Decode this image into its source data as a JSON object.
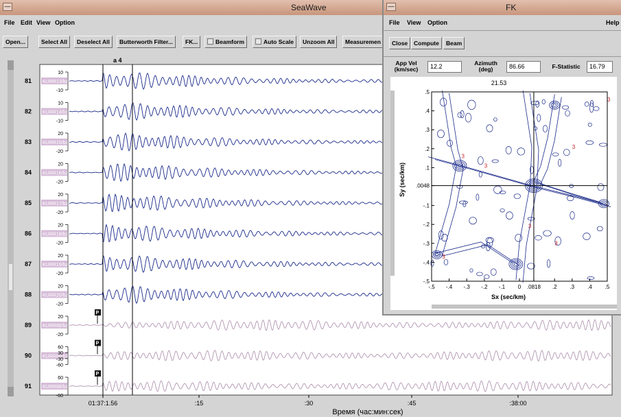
{
  "seawave": {
    "title": "SeaWave",
    "menu": [
      "File",
      "Edit",
      "View",
      "Option"
    ],
    "toolbar": [
      "Open...",
      "Select All",
      "Deselect All",
      "Butterworth Filter...",
      "FK...",
      "Beamform",
      "Auto Scale",
      "Unzoom All",
      "Measuremen"
    ],
    "pick_label": "a 4",
    "xaxis": {
      "ticks": [
        "01:37:1.56",
        ":15",
        ":30",
        ":45",
        ":38:00"
      ],
      "label": "Время (час:мин:сек)"
    },
    "traces": [
      {
        "num": "81",
        "name": "KURR13/bz",
        "scale": [
          "10",
          "-10"
        ],
        "active": true
      },
      {
        "num": "82",
        "name": "KURR14/bz",
        "scale": [
          "10",
          "-10"
        ],
        "active": true
      },
      {
        "num": "83",
        "name": "KURR15/bz",
        "scale": [
          "20",
          "-20"
        ],
        "active": true
      },
      {
        "num": "84",
        "name": "KURR16/bz",
        "scale": [
          "20",
          "-20"
        ],
        "active": true
      },
      {
        "num": "85",
        "name": "KURR17/bz",
        "scale": [
          "20",
          "-20"
        ],
        "active": true
      },
      {
        "num": "86",
        "name": "KURR18/bz",
        "scale": [
          "20",
          "-20"
        ],
        "active": true
      },
      {
        "num": "87",
        "name": "KURR19/bz",
        "scale": [
          "20",
          "-20"
        ],
        "active": true
      },
      {
        "num": "88",
        "name": "KURR20/bz",
        "scale": [
          "20",
          "-20"
        ],
        "active": true
      },
      {
        "num": "89",
        "name": "KURR88/bz",
        "scale": [
          "20",
          "-20"
        ],
        "active": false,
        "pick": "P"
      },
      {
        "num": "90",
        "name": "KURR88/bz",
        "scale": [
          "60",
          "30",
          "-30",
          "-60"
        ],
        "active": false,
        "pick": "P"
      },
      {
        "num": "91",
        "name": "KURR88/bz",
        "scale": [
          "60",
          "-60"
        ],
        "active": false,
        "pick": "P"
      }
    ],
    "colors": {
      "active": "#1a2a8a",
      "inactive": "#a98aa8",
      "label_bg": "#d6bcd8"
    }
  },
  "fk": {
    "title": "FK",
    "menu": [
      "File",
      "View",
      "Option"
    ],
    "help": "Help",
    "buttons": [
      "Close",
      "Compute",
      "Beam"
    ],
    "app_vel": {
      "label1": "App Vel",
      "label2": "(km/sec)",
      "value": "12.2"
    },
    "azimuth": {
      "label1": "Azimuth",
      "label2": "(deg)",
      "value": "86.66"
    },
    "fstat": {
      "label": "F-Statistic",
      "value": "16.79"
    },
    "plot": {
      "top_value": "21.53",
      "xlabel": "Sx (sec/km)",
      "ylabel": "Sy (sec/km)",
      "xticks": [
        "-.5",
        "-.4",
        "-.3",
        "-.2",
        "-.1",
        "0",
        ".0818",
        ".2",
        ".3",
        ".4",
        ".5"
      ],
      "yticks": [
        ".5",
        ".4",
        ".3",
        ".2",
        ".1",
        ".0048",
        "-.1",
        "-.2",
        "-.3",
        "-.4",
        "-.5"
      ],
      "crosshair": {
        "sx": 0.0818,
        "sy": 0.0048
      },
      "contour_color": "#1a2a8a",
      "marker_color": "#cc2222"
    }
  }
}
